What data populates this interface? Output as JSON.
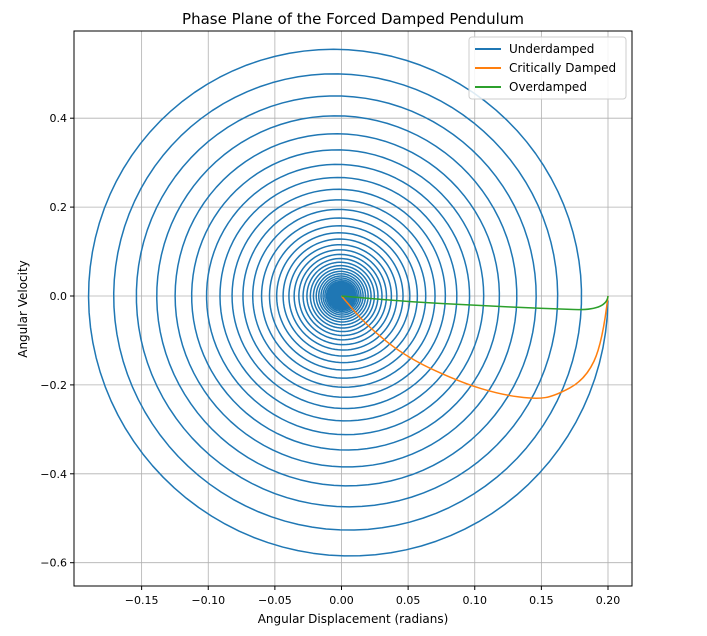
{
  "chart_data": {
    "type": "line",
    "title": "Phase Plane of the Forced Damped Pendulum",
    "xlabel": "Angular Displacement (radians)",
    "ylabel": "Angular Velocity",
    "xlim": [
      -0.2,
      0.22
    ],
    "ylim": [
      -0.65,
      0.65
    ],
    "x_ticks": [
      -0.15,
      -0.1,
      -0.05,
      0.0,
      0.05,
      0.1,
      0.15,
      0.2
    ],
    "x_tick_labels": [
      "−0.15",
      "−0.10",
      "−0.05",
      "0.00",
      "0.05",
      "0.10",
      "0.15",
      "0.20"
    ],
    "y_ticks": [
      -0.6,
      -0.4,
      -0.2,
      0.0,
      0.2,
      0.4
    ],
    "y_tick_labels": [
      "−0.6",
      "−0.4",
      "−0.2",
      "0.0",
      "0.2",
      "0.4"
    ],
    "grid": true,
    "legend_position": "top-right",
    "series": [
      {
        "name": "Underdamped",
        "color": "#1f77b4",
        "initial_state": [
          0.2,
          0.0
        ],
        "model": "damped oscillator: x = 0.2·e^(−0.05·t)·cos(3t), v = dx/dt",
        "points": [
          [
            0.2,
            0.0
          ],
          [
            0.0,
            0.57
          ],
          [
            -0.181,
            0.0
          ],
          [
            0.0,
            -0.596
          ],
          [
            0.165,
            0.0
          ],
          [
            0.0,
            0.44
          ],
          [
            -0.149,
            0.0
          ],
          [
            0.0,
            -0.487
          ],
          [
            0.134,
            0.0
          ],
          [
            0.0,
            0.37
          ],
          [
            -0.122,
            0.0
          ],
          [
            0.0,
            -0.4
          ]
        ]
      },
      {
        "name": "Critically Damped",
        "color": "#ff7f0e",
        "initial_state": [
          0.2,
          0.0
        ],
        "points": [
          [
            0.2,
            0.0
          ],
          [
            0.196,
            -0.105
          ],
          [
            0.183,
            -0.188
          ],
          [
            0.16,
            -0.225
          ],
          [
            0.146,
            -0.232
          ],
          [
            0.12,
            -0.222
          ],
          [
            0.09,
            -0.195
          ],
          [
            0.05,
            -0.14
          ],
          [
            0.02,
            -0.07
          ],
          [
            0.0,
            0.0
          ]
        ]
      },
      {
        "name": "Overdamped",
        "color": "#2ca02c",
        "initial_state": [
          0.2,
          0.0
        ],
        "points": [
          [
            0.2,
            0.0
          ],
          [
            0.199,
            -0.033
          ],
          [
            0.15,
            -0.028
          ],
          [
            0.1,
            -0.021
          ],
          [
            0.05,
            -0.013
          ],
          [
            0.0,
            0.0
          ]
        ]
      }
    ]
  }
}
